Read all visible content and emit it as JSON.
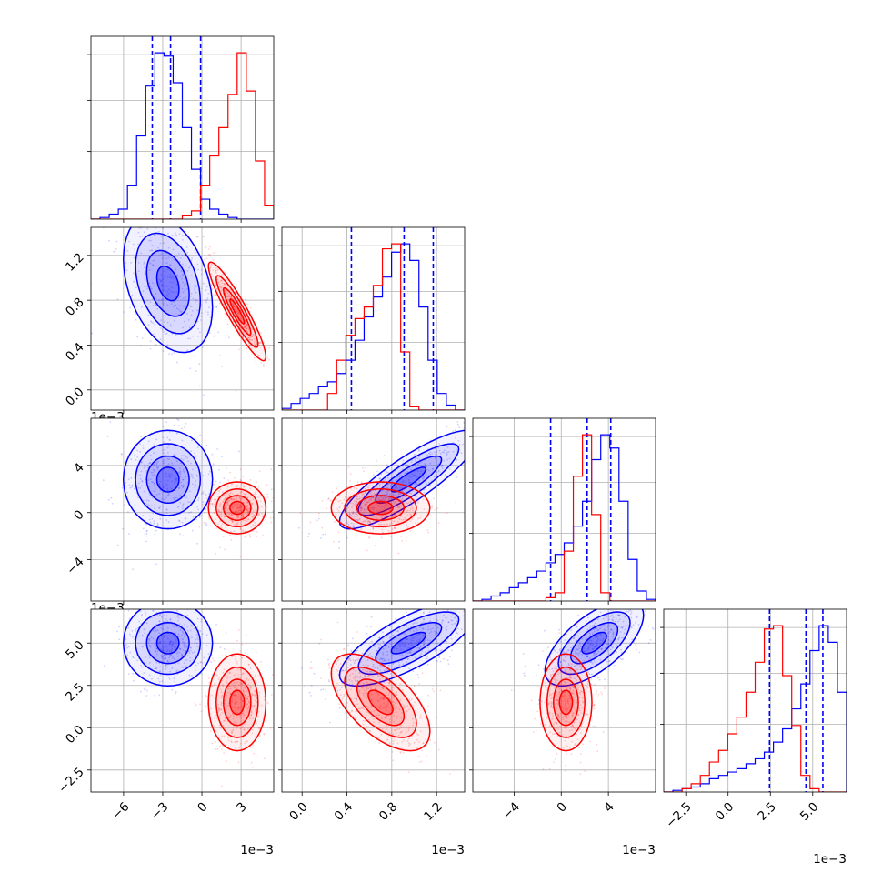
{
  "colors": {
    "blue": "#0000ff",
    "red": "#ff0000",
    "grid": "#b0b0b0",
    "axes": "#000000"
  },
  "chart_data": {
    "type": "corner",
    "grid": true,
    "parameters": [
      {
        "index": 0,
        "range": [
          -8.5,
          5.5
        ],
        "ticks": [
          -6,
          -3,
          0,
          3
        ],
        "tick_labels": [
          "−6",
          "−3",
          "0",
          "3"
        ],
        "offset_label": "1e−3"
      },
      {
        "index": 1,
        "range": [
          -0.18,
          1.45
        ],
        "ticks": [
          0.0,
          0.4,
          0.8,
          1.2
        ],
        "tick_labels": [
          "0.0",
          "0.4",
          "0.8",
          "1.2"
        ],
        "offset_label": "1e−3"
      },
      {
        "index": 2,
        "range": [
          -7.5,
          8.0
        ],
        "ticks": [
          -4,
          0,
          4
        ],
        "tick_labels": [
          "−4",
          "0",
          "4"
        ],
        "offset_label": "1e−3"
      },
      {
        "index": 3,
        "range": [
          -3.8,
          7.0
        ],
        "ticks": [
          -2.5,
          0.0,
          2.5,
          5.0
        ],
        "tick_labels": [
          "−2.5",
          "0.0",
          "2.5",
          "5.0"
        ],
        "offset_label": "1e−3"
      }
    ],
    "offset_label_text": "1e−3",
    "series": [
      {
        "name": "",
        "color": "#0000ff",
        "mean": [
          -2.6,
          0.95,
          2.8,
          5.0
        ],
        "std": [
          1.55,
          0.28,
          1.9,
          1.15
        ],
        "corr": [
          [
            1,
            -0.35,
            0.0,
            0.0
          ],
          [
            -0.35,
            1,
            0.85,
            0.75
          ],
          [
            0.0,
            0.85,
            1,
            0.65
          ],
          [
            0.0,
            0.75,
            0.65,
            1
          ]
        ],
        "quantiles": [
          [
            -3.8,
            -2.4,
            -0.1
          ],
          [
            0.44,
            0.91,
            1.17
          ],
          [
            -0.9,
            2.2,
            4.2
          ],
          [
            2.45,
            4.6,
            5.6
          ]
        ],
        "hist": [
          [
            0.0,
            0.01,
            0.03,
            0.06,
            0.2,
            0.5,
            0.8,
            1.0,
            0.98,
            0.82,
            0.55,
            0.3,
            0.12,
            0.06,
            0.03,
            0.01,
            0.0,
            0.0,
            0.0,
            0.0
          ],
          [
            0.01,
            0.04,
            0.07,
            0.1,
            0.14,
            0.17,
            0.22,
            0.3,
            0.42,
            0.56,
            0.68,
            0.8,
            0.95,
            1.0,
            0.9,
            0.62,
            0.3,
            0.1,
            0.03,
            0.0
          ],
          [
            0.0,
            0.01,
            0.03,
            0.05,
            0.08,
            0.11,
            0.14,
            0.18,
            0.23,
            0.28,
            0.35,
            0.45,
            0.6,
            0.85,
            1.0,
            0.92,
            0.6,
            0.25,
            0.06,
            0.01
          ],
          [
            0.0,
            0.01,
            0.02,
            0.03,
            0.05,
            0.08,
            0.1,
            0.12,
            0.14,
            0.17,
            0.2,
            0.24,
            0.3,
            0.38,
            0.5,
            0.65,
            0.85,
            1.0,
            0.9,
            0.6
          ]
        ]
      },
      {
        "name": "",
        "color": "#ff0000",
        "mean": [
          2.7,
          0.7,
          0.4,
          1.5
        ],
        "std": [
          1.0,
          0.2,
          1.0,
          1.3
        ],
        "corr": [
          [
            1,
            -0.92,
            0.0,
            0.0
          ],
          [
            -0.92,
            1,
            0.0,
            -0.6
          ],
          [
            0.0,
            0.0,
            1,
            0.0
          ],
          [
            0.0,
            -0.6,
            0.0,
            1
          ]
        ],
        "quantiles": [],
        "hist": [
          [
            0.0,
            0.0,
            0.0,
            0.0,
            0.0,
            0.0,
            0.0,
            0.0,
            0.0,
            0.0,
            0.02,
            0.05,
            0.2,
            0.38,
            0.55,
            0.75,
            1.0,
            0.77,
            0.35,
            0.08
          ],
          [
            0.0,
            0.0,
            0.0,
            0.0,
            0.0,
            0.1,
            0.3,
            0.45,
            0.55,
            0.62,
            0.75,
            0.97,
            1.0,
            0.35,
            0.02,
            0.0,
            0.0,
            0.0,
            0.0,
            0.0
          ],
          [
            0.0,
            0.0,
            0.0,
            0.0,
            0.0,
            0.0,
            0.0,
            0.0,
            0.02,
            0.05,
            0.3,
            0.75,
            1.0,
            0.52,
            0.05,
            0.0,
            0.0,
            0.0,
            0.0,
            0.0
          ],
          [
            0.0,
            0.0,
            0.02,
            0.05,
            0.1,
            0.18,
            0.25,
            0.35,
            0.45,
            0.6,
            0.78,
            0.98,
            1.0,
            0.7,
            0.4,
            0.1,
            0.02,
            0.0,
            0.0,
            0.0
          ]
        ]
      }
    ]
  }
}
